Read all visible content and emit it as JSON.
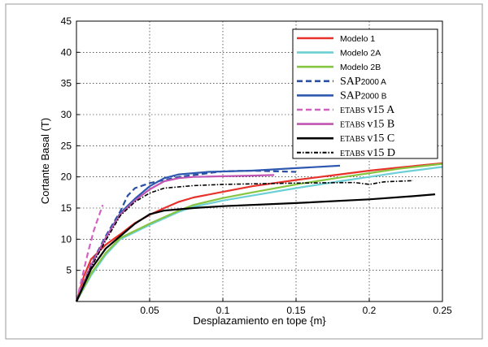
{
  "chart_data": {
    "type": "line",
    "xlabel": "Desplazamiento en tope {m}",
    "ylabel": "Cortante Basal (T)",
    "xlim": [
      0,
      0.25
    ],
    "ylim": [
      0,
      45
    ],
    "x_ticks": [
      0.05,
      0.1,
      0.15,
      0.2,
      0.25
    ],
    "x_tick_labels": [
      "0.05",
      "0.1",
      "0.15",
      "0.2",
      "0.25"
    ],
    "y_ticks": [
      5,
      10,
      15,
      20,
      25,
      30,
      35,
      40,
      45
    ],
    "y_tick_labels": [
      "5",
      "10",
      "15",
      "20",
      "25",
      "30",
      "35",
      "40",
      "45"
    ],
    "grid": true,
    "legend_position": "top-right",
    "series": [
      {
        "name": "Modelo 1",
        "color": "#e8312a",
        "dash": "solid",
        "width": 2.2,
        "points": [
          [
            0,
            0
          ],
          [
            0.005,
            4
          ],
          [
            0.01,
            6.8
          ],
          [
            0.02,
            9.1
          ],
          [
            0.03,
            10.8
          ],
          [
            0.04,
            12.6
          ],
          [
            0.05,
            13.9
          ],
          [
            0.06,
            15.0
          ],
          [
            0.07,
            16.0
          ],
          [
            0.08,
            16.7
          ],
          [
            0.1,
            17.6
          ],
          [
            0.12,
            18.5
          ],
          [
            0.15,
            19.5
          ],
          [
            0.18,
            20.4
          ],
          [
            0.2,
            21.0
          ],
          [
            0.22,
            21.5
          ],
          [
            0.25,
            22.2
          ]
        ]
      },
      {
        "name": "Modelo 2A",
        "color": "#6ccfd6",
        "dash": "solid",
        "width": 2.2,
        "points": [
          [
            0,
            0
          ],
          [
            0.01,
            4.2
          ],
          [
            0.02,
            7.5
          ],
          [
            0.03,
            10.0
          ],
          [
            0.05,
            12.3
          ],
          [
            0.07,
            14.4
          ],
          [
            0.08,
            15.2
          ],
          [
            0.1,
            16.2
          ],
          [
            0.12,
            17.0
          ],
          [
            0.15,
            18.2
          ],
          [
            0.18,
            19.3
          ],
          [
            0.2,
            20.0
          ],
          [
            0.22,
            20.7
          ],
          [
            0.25,
            21.6
          ]
        ]
      },
      {
        "name": "Modelo 2B",
        "color": "#85c53f",
        "dash": "solid",
        "width": 2.2,
        "points": [
          [
            0,
            0
          ],
          [
            0.01,
            4.5
          ],
          [
            0.02,
            7.8
          ],
          [
            0.03,
            10.2
          ],
          [
            0.05,
            12.5
          ],
          [
            0.07,
            14.6
          ],
          [
            0.08,
            15.5
          ],
          [
            0.1,
            16.6
          ],
          [
            0.12,
            17.5
          ],
          [
            0.15,
            18.8
          ],
          [
            0.18,
            19.9
          ],
          [
            0.2,
            20.6
          ],
          [
            0.22,
            21.3
          ],
          [
            0.25,
            22.1
          ]
        ]
      },
      {
        "name": "SAP2000 A",
        "color": "#2a4fa3",
        "dash": "dashed",
        "width": 2.2,
        "points": [
          [
            0,
            0
          ],
          [
            0.01,
            6
          ],
          [
            0.02,
            10.5
          ],
          [
            0.03,
            14.5
          ],
          [
            0.035,
            17.0
          ],
          [
            0.04,
            18.2
          ],
          [
            0.05,
            19.0
          ],
          [
            0.07,
            20.0
          ],
          [
            0.09,
            20.6
          ],
          [
            0.1,
            20.9
          ],
          [
            0.12,
            21.0
          ],
          [
            0.15,
            20.8
          ]
        ]
      },
      {
        "name": "SAP2000 B",
        "color": "#2e58b0",
        "dash": "solid",
        "width": 2.2,
        "points": [
          [
            0,
            0
          ],
          [
            0.01,
            5.8
          ],
          [
            0.02,
            10.2
          ],
          [
            0.03,
            14.2
          ],
          [
            0.04,
            16.5
          ],
          [
            0.05,
            18.5
          ],
          [
            0.06,
            19.8
          ],
          [
            0.07,
            20.4
          ],
          [
            0.09,
            20.8
          ],
          [
            0.12,
            21.0
          ],
          [
            0.15,
            21.4
          ],
          [
            0.18,
            21.8
          ]
        ]
      },
      {
        "name": "ETABS v15 A",
        "color": "#d361c2",
        "dash": "dashed",
        "width": 2.2,
        "points": [
          [
            0,
            0
          ],
          [
            0.004,
            4
          ],
          [
            0.008,
            8
          ],
          [
            0.012,
            11.5
          ],
          [
            0.016,
            14.2
          ],
          [
            0.018,
            15.5
          ]
        ]
      },
      {
        "name": "ETABS v15 B",
        "color": "#c055b3",
        "dash": "solid",
        "width": 2.2,
        "points": [
          [
            0,
            0
          ],
          [
            0.01,
            5.8
          ],
          [
            0.02,
            10.2
          ],
          [
            0.03,
            14.0
          ],
          [
            0.04,
            16.2
          ],
          [
            0.05,
            18.0
          ],
          [
            0.06,
            19.3
          ],
          [
            0.07,
            19.8
          ],
          [
            0.08,
            20.0
          ],
          [
            0.1,
            20.1
          ],
          [
            0.12,
            20.2
          ],
          [
            0.135,
            20.3
          ]
        ]
      },
      {
        "name": "ETABS v15 C",
        "color": "#000000",
        "dash": "solid",
        "width": 2.2,
        "points": [
          [
            0,
            0
          ],
          [
            0.01,
            5.2
          ],
          [
            0.02,
            8.5
          ],
          [
            0.03,
            10.5
          ],
          [
            0.04,
            12.5
          ],
          [
            0.05,
            14.0
          ],
          [
            0.06,
            14.6
          ],
          [
            0.08,
            15.0
          ],
          [
            0.1,
            15.3
          ],
          [
            0.15,
            15.8
          ],
          [
            0.2,
            16.4
          ],
          [
            0.23,
            16.9
          ],
          [
            0.245,
            17.2
          ]
        ]
      },
      {
        "name": "ETABS v15 D",
        "color": "#000000",
        "dash": "dashdot",
        "width": 1.6,
        "points": [
          [
            0,
            0
          ],
          [
            0.01,
            5.5
          ],
          [
            0.02,
            9.8
          ],
          [
            0.03,
            13.8
          ],
          [
            0.04,
            16.0
          ],
          [
            0.05,
            17.4
          ],
          [
            0.06,
            18.2
          ],
          [
            0.08,
            18.6
          ],
          [
            0.1,
            18.8
          ],
          [
            0.15,
            19.0
          ],
          [
            0.19,
            19.1
          ],
          [
            0.2,
            18.8
          ],
          [
            0.21,
            19.2
          ],
          [
            0.22,
            19.3
          ],
          [
            0.23,
            19.4
          ]
        ]
      }
    ],
    "legend_entries": [
      {
        "main": "Modelo 1",
        "small": "",
        "serif": false
      },
      {
        "main": "Modelo 2A",
        "small": "",
        "serif": false
      },
      {
        "main": "Modelo 2B",
        "small": "",
        "serif": false
      },
      {
        "main": "SAP",
        "small": "2000 A",
        "serif": true
      },
      {
        "main": "SAP",
        "small": "2000 B",
        "serif": true
      },
      {
        "main": "ETABS ",
        "small": "v15 A",
        "serif": true
      },
      {
        "main": "ETABS ",
        "small": "v15 B",
        "serif": true
      },
      {
        "main": "ETABS ",
        "small": "v15 C",
        "serif": true
      },
      {
        "main": "ETABS ",
        "small": "v15 D",
        "serif": true
      }
    ]
  }
}
